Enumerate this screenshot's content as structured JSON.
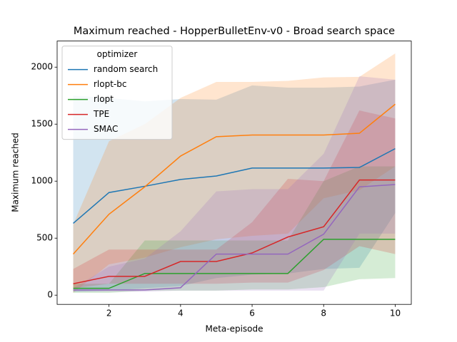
{
  "chart_data": {
    "type": "line",
    "title": "Maximum reached - HopperBulletEnv-v0 - Broad search space",
    "x_label": "Meta-episode",
    "y_label": "Maximum reached",
    "legend_title": "optimizer",
    "legend_position": "upper left",
    "x": [
      1,
      2,
      3,
      4,
      5,
      6,
      7,
      8,
      9,
      10
    ],
    "xlim": [
      0.55,
      10.45
    ],
    "xticks": [
      2,
      4,
      6,
      8,
      10
    ],
    "ylim": [
      -81,
      2229
    ],
    "yticks": [
      0,
      500,
      1000,
      1500,
      2000
    ],
    "series": [
      {
        "name": "random search",
        "color": "#1f77b4",
        "values": [
          630,
          900,
          955,
          1015,
          1045,
          1115,
          1115,
          1115,
          1120,
          1285
        ],
        "lower": [
          30,
          40,
          60,
          80,
          150,
          180,
          190,
          230,
          240,
          720
        ],
        "upper": [
          1750,
          1730,
          1700,
          1720,
          1715,
          1840,
          1820,
          1820,
          1830,
          1890
        ]
      },
      {
        "name": "rlopt-bc",
        "color": "#ff7f0e",
        "values": [
          360,
          710,
          950,
          1220,
          1390,
          1405,
          1405,
          1405,
          1420,
          1675
        ],
        "lower": [
          20,
          270,
          330,
          420,
          490,
          520,
          540,
          850,
          920,
          1130
        ],
        "upper": [
          620,
          1350,
          1500,
          1730,
          1870,
          1870,
          1880,
          1910,
          1915,
          2120
        ]
      },
      {
        "name": "rlopt",
        "color": "#2ca02c",
        "values": [
          60,
          60,
          190,
          190,
          190,
          190,
          190,
          490,
          490,
          490
        ],
        "lower": [
          20,
          20,
          40,
          40,
          40,
          50,
          50,
          70,
          140,
          150
        ],
        "upper": [
          100,
          100,
          480,
          480,
          480,
          480,
          480,
          1000,
          1130,
          1130
        ]
      },
      {
        "name": "TPE",
        "color": "#d62728",
        "values": [
          100,
          165,
          165,
          295,
          295,
          370,
          510,
          600,
          1010,
          1010
        ],
        "lower": [
          60,
          100,
          100,
          100,
          100,
          110,
          110,
          220,
          430,
          360
        ],
        "upper": [
          230,
          400,
          400,
          400,
          400,
          640,
          1020,
          1000,
          1620,
          1550
        ]
      },
      {
        "name": "SMAC",
        "color": "#9467bd",
        "values": [
          45,
          45,
          45,
          65,
          360,
          360,
          360,
          535,
          950,
          970
        ],
        "lower": [
          30,
          30,
          30,
          40,
          40,
          40,
          40,
          40,
          540,
          540
        ],
        "upper": [
          60,
          250,
          320,
          560,
          910,
          930,
          930,
          1240,
          1920,
          1890
        ]
      }
    ]
  }
}
